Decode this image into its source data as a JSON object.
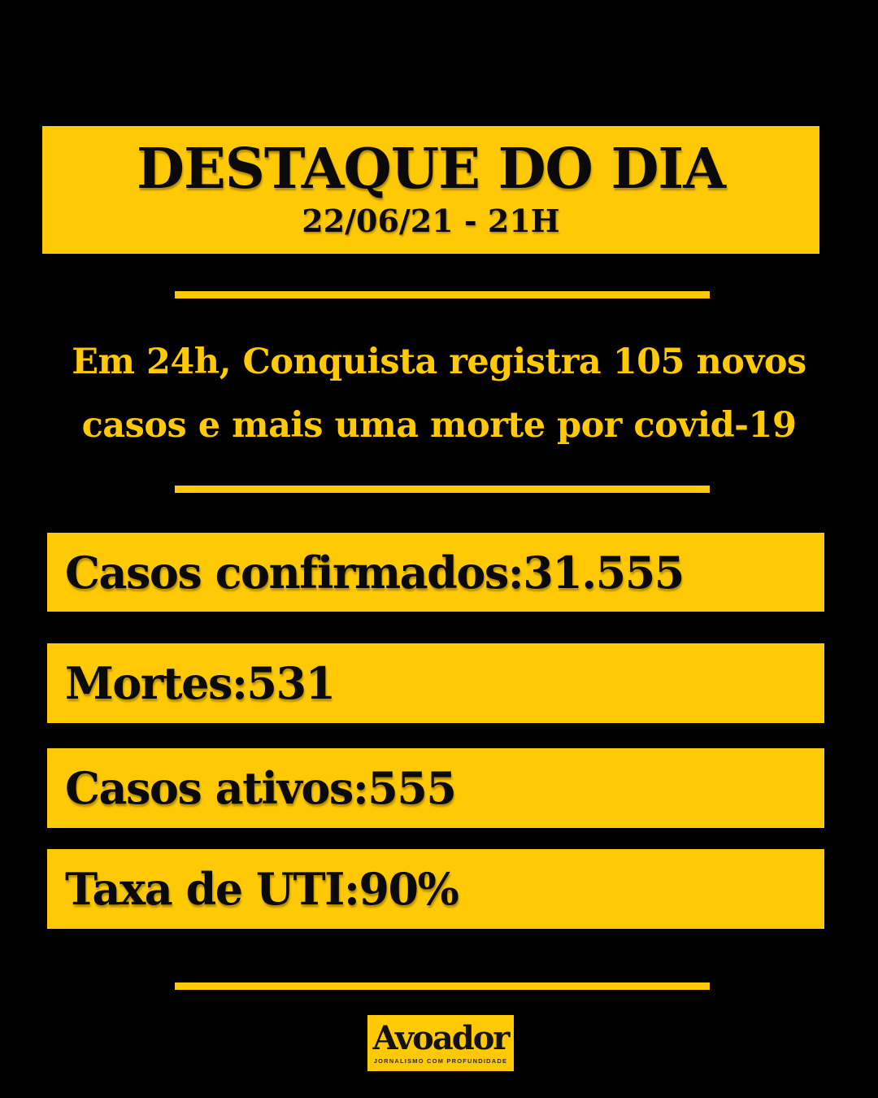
{
  "colors": {
    "background": "#000000",
    "accent_yellow": "#FFC905",
    "text_black": "#0A0A0A"
  },
  "banner": {
    "title": "DESTAQUE DO DIA",
    "datetime": "22/06/21 - 21H"
  },
  "headline": {
    "line1": "Em 24h, Conquista registra 105 novos",
    "line2": "casos e mais uma morte por covid-19"
  },
  "stats": {
    "separator": ": ",
    "items": [
      {
        "label": "Casos confirmados",
        "value": "31.555"
      },
      {
        "label": "Mortes",
        "value": "531"
      },
      {
        "label": "Casos ativos",
        "value": "555"
      },
      {
        "label": "Taxa de UTI",
        "value": "90%"
      }
    ]
  },
  "footer": {
    "logo_text": "Avoador",
    "tagline": "JORNALISMO COM PROFUNDIDADE"
  }
}
